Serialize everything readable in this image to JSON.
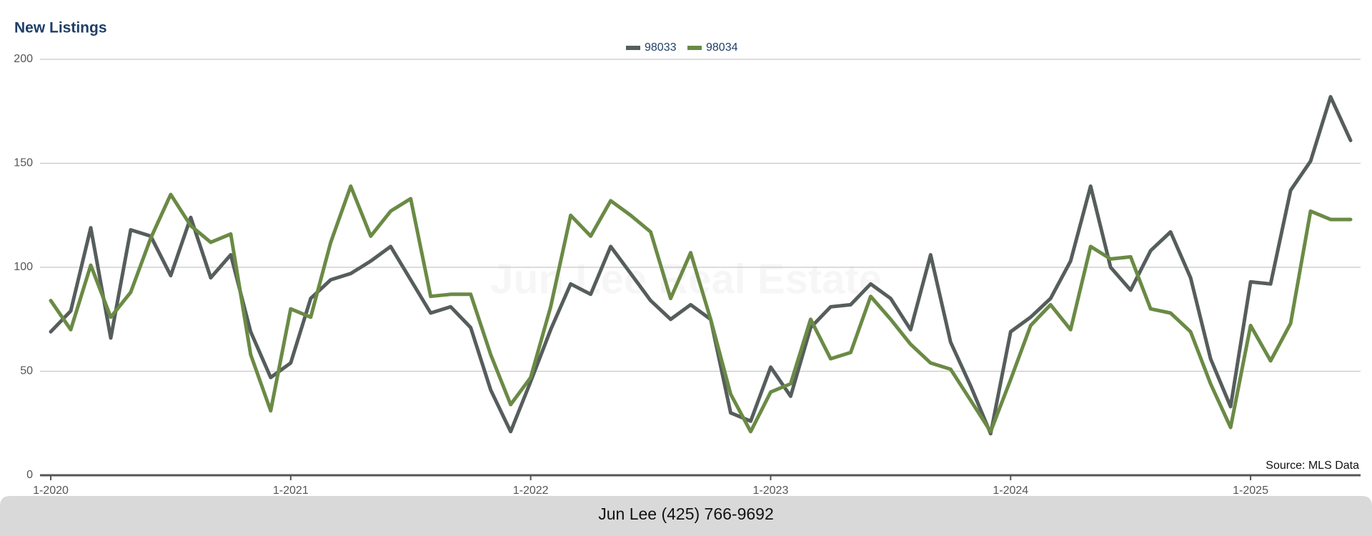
{
  "chart_data": {
    "type": "line",
    "title": "New Listings",
    "watermark": "Jun Lee Real Estate",
    "source": "Source: MLS Data",
    "footer": "Jun Lee (425) 766-9692",
    "legend": "top",
    "grid": true,
    "categories": [
      "1-2020",
      null,
      null,
      null,
      null,
      null,
      null,
      null,
      null,
      null,
      null,
      null,
      "1-2021",
      null,
      null,
      null,
      null,
      null,
      null,
      null,
      null,
      null,
      null,
      null,
      "1-2022",
      null,
      null,
      null,
      null,
      null,
      null,
      null,
      null,
      null,
      null,
      null,
      "1-2023",
      null,
      null,
      null,
      null,
      null,
      null,
      null,
      null,
      null,
      null,
      null,
      "1-2024",
      null,
      null,
      null,
      null,
      null,
      null,
      null,
      null,
      null,
      null,
      null,
      "1-2025",
      null,
      null,
      null,
      null,
      null
    ],
    "ylim": [
      0,
      200
    ],
    "yticks": [
      0,
      50,
      100,
      150,
      200
    ],
    "series": [
      {
        "name": "98033",
        "color": "#565d5d",
        "values": [
          69,
          79,
          119,
          66,
          118,
          115,
          96,
          124,
          95,
          106,
          69,
          47,
          54,
          85,
          94,
          97,
          103,
          110,
          94,
          78,
          81,
          71,
          41,
          21,
          45,
          70,
          92,
          87,
          110,
          97,
          84,
          75,
          82,
          75,
          30,
          26,
          52,
          38,
          71,
          81,
          82,
          92,
          85,
          70,
          106,
          64,
          43,
          20,
          69,
          76,
          85,
          103,
          139,
          100,
          89,
          108,
          117,
          95,
          56,
          33,
          93,
          92,
          137,
          151,
          182,
          161
        ]
      },
      {
        "name": "98034",
        "color": "#6a8a45",
        "values": [
          84,
          70,
          101,
          76,
          88,
          114,
          135,
          120,
          112,
          116,
          58,
          31,
          80,
          76,
          112,
          139,
          115,
          127,
          133,
          86,
          87,
          87,
          58,
          34,
          47,
          81,
          125,
          115,
          132,
          125,
          117,
          85,
          107,
          75,
          39,
          21,
          40,
          44,
          75,
          56,
          59,
          86,
          75,
          63,
          54,
          51,
          36,
          21,
          46,
          72,
          82,
          70,
          110,
          104,
          105,
          80,
          78,
          69,
          44,
          23,
          72,
          55,
          73,
          127,
          123,
          123
        ]
      }
    ]
  }
}
